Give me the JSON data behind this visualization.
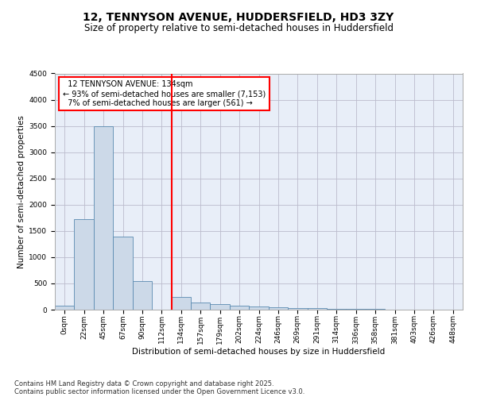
{
  "title_line1": "12, TENNYSON AVENUE, HUDDERSFIELD, HD3 3ZY",
  "title_line2": "Size of property relative to semi-detached houses in Huddersfield",
  "xlabel": "Distribution of semi-detached houses by size in Huddersfield",
  "ylabel": "Number of semi-detached properties",
  "bar_color": "#ccd9e8",
  "bar_edge_color": "#5a8ab0",
  "background_color": "#e8eef8",
  "grid_color": "#bbbbcc",
  "bin_labels": [
    "0sqm",
    "22sqm",
    "45sqm",
    "67sqm",
    "90sqm",
    "112sqm",
    "134sqm",
    "157sqm",
    "179sqm",
    "202sqm",
    "224sqm",
    "246sqm",
    "269sqm",
    "291sqm",
    "314sqm",
    "336sqm",
    "358sqm",
    "381sqm",
    "403sqm",
    "426sqm",
    "448sqm"
  ],
  "bar_values": [
    80,
    1720,
    3500,
    1390,
    540,
    0,
    240,
    140,
    100,
    70,
    55,
    45,
    35,
    30,
    20,
    15,
    10,
    0,
    0,
    0,
    0
  ],
  "property_label": "12 TENNYSON AVENUE: 134sqm",
  "pct_smaller": 93,
  "pct_larger": 7,
  "n_smaller": 7153,
  "n_larger": 561,
  "vline_bin": 6,
  "ylim": [
    0,
    4500
  ],
  "yticks": [
    0,
    500,
    1000,
    1500,
    2000,
    2500,
    3000,
    3500,
    4000,
    4500
  ],
  "footnote1": "Contains HM Land Registry data © Crown copyright and database right 2025.",
  "footnote2": "Contains public sector information licensed under the Open Government Licence v3.0.",
  "title_fontsize": 10,
  "subtitle_fontsize": 8.5,
  "axis_label_fontsize": 7.5,
  "tick_fontsize": 6.5,
  "annotation_fontsize": 7,
  "footnote_fontsize": 6
}
